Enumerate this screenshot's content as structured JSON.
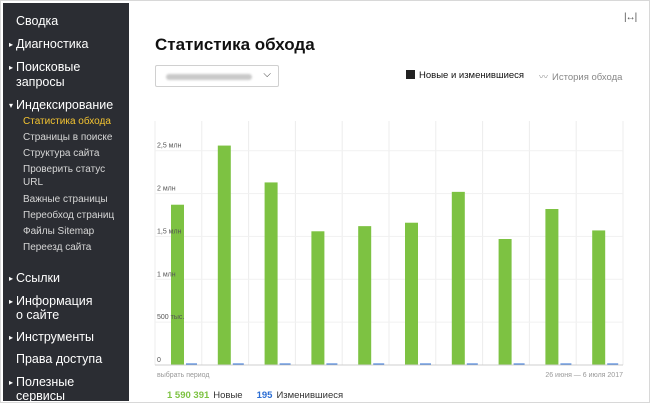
{
  "sidebar": {
    "items": [
      {
        "label": "Сводка",
        "arrow": false
      },
      {
        "label": "Диагностика",
        "arrow": true
      },
      {
        "label": "Поисковые",
        "arrow": true
      },
      {
        "label": "запросы",
        "arrow": false
      },
      {
        "label": "Индексирование",
        "arrow": true
      },
      {
        "label": "Ссылки",
        "arrow": true
      },
      {
        "label": "Информация",
        "arrow": true
      },
      {
        "label": "о сайте",
        "arrow": false
      },
      {
        "label": "Инструменты",
        "arrow": true
      },
      {
        "label": "Права доступа",
        "arrow": false
      },
      {
        "label": "Полезные",
        "arrow": true
      },
      {
        "label": "сервисы",
        "arrow": false
      }
    ],
    "sub_items": [
      {
        "label": "Статистика обхода",
        "active": true
      },
      {
        "label": "Страницы в поиске",
        "active": false
      },
      {
        "label": "Структура сайта",
        "active": false
      },
      {
        "label": "Проверить статус",
        "active": false
      },
      {
        "label": "URL",
        "active": false
      },
      {
        "label": "Важные страницы",
        "active": false
      },
      {
        "label": "Переобход страниц",
        "active": false
      },
      {
        "label": "Файлы Sitemap",
        "active": false
      },
      {
        "label": "Переезд сайта",
        "active": false
      }
    ]
  },
  "main": {
    "title": "Статистика обхода",
    "expand_icon": "|↔|",
    "site_select_chevron": "⌵",
    "modes": {
      "new_label": "Новые и изменившиеся",
      "history_label": "История обхода"
    },
    "period_label": "выбрать период",
    "date_range": "26 июня — 6 июля 2017"
  },
  "legend": {
    "new_count": "1 590 391",
    "new_label": "Новые",
    "changed_count": "195",
    "changed_label": "Изменившиеся"
  },
  "colors": {
    "new": "#7dc242",
    "changed": "#2b6dd3",
    "sidebar_bg": "#2b2d33",
    "active_item": "#f4c431"
  },
  "chart_data": {
    "type": "bar",
    "categories": [
      "",
      "",
      "",
      "",
      "",
      "",
      "",
      "",
      "",
      ""
    ],
    "series": [
      {
        "name": "Новые",
        "values": [
          1870000,
          2560000,
          2130000,
          1560000,
          1620000,
          1660000,
          2020000,
          1470000,
          1820000,
          1570000
        ]
      },
      {
        "name": "Изменившиеся",
        "values": [
          20,
          20,
          20,
          20,
          20,
          20,
          20,
          20,
          20,
          15
        ]
      }
    ],
    "y_ticks": [
      {
        "value": 0,
        "label": "0"
      },
      {
        "value": 500000,
        "label": "500 тыс."
      },
      {
        "value": 1000000,
        "label": "1 млн"
      },
      {
        "value": 1500000,
        "label": "1,5 млн"
      },
      {
        "value": 2000000,
        "label": "2 млн"
      },
      {
        "value": 2500000,
        "label": "2,5 млн"
      }
    ],
    "ylim": [
      0,
      2800000
    ],
    "grid": true,
    "legend_position": "bottom-center"
  }
}
